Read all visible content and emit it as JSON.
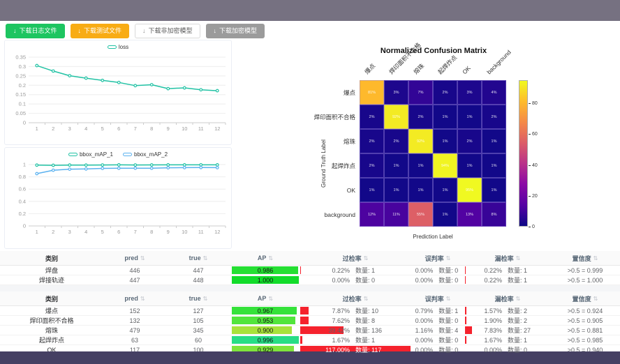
{
  "icons": {
    "download": "↓",
    "sort": "⇅"
  },
  "toolbar": {
    "buttons": [
      {
        "label": "下载日志文件",
        "style": "green"
      },
      {
        "label": "下载测试文件",
        "style": "orange"
      },
      {
        "label": "下载非加密模型",
        "style": "plain"
      },
      {
        "label": "下载加密模型",
        "style": "gray"
      }
    ]
  },
  "chart_data": [
    {
      "type": "line",
      "title": "",
      "x": [
        1,
        2,
        3,
        4,
        5,
        6,
        7,
        8,
        9,
        10,
        11,
        12
      ],
      "series": [
        {
          "name": "loss",
          "color": "#21c2a4",
          "values": [
            0.305,
            0.276,
            0.251,
            0.238,
            0.226,
            0.215,
            0.198,
            0.203,
            0.182,
            0.186,
            0.176,
            0.171
          ]
        }
      ],
      "ylim": [
        0,
        0.35
      ],
      "yticks": [
        0,
        0.05,
        0.1,
        0.15,
        0.2,
        0.25,
        0.3,
        0.35
      ],
      "grid": true,
      "legend_position": "top"
    },
    {
      "type": "line",
      "title": "",
      "x": [
        1,
        2,
        3,
        4,
        5,
        6,
        7,
        8,
        9,
        10,
        11,
        12
      ],
      "series": [
        {
          "name": "bbox_mAP_1",
          "color": "#21c2a4",
          "values": [
            0.991,
            0.988,
            0.992,
            0.991,
            0.993,
            0.995,
            0.993,
            0.994,
            0.995,
            0.995,
            0.996,
            0.995
          ]
        },
        {
          "name": "bbox_mAP_2",
          "color": "#5ab1ef",
          "values": [
            0.852,
            0.908,
            0.925,
            0.928,
            0.938,
            0.94,
            0.941,
            0.94,
            0.948,
            0.95,
            0.951,
            0.95
          ]
        }
      ],
      "ylim": [
        0,
        1
      ],
      "yticks": [
        0,
        0.2,
        0.4,
        0.6,
        0.8,
        1
      ],
      "grid": true,
      "legend_position": "top"
    },
    {
      "type": "heatmap",
      "title": "Normalized Confusion Matrix",
      "xlabel": "Prediction Label",
      "ylabel": "Ground Truth Label",
      "labels": [
        "爆点",
        "焊印面积不合格",
        "熔珠",
        "起焊炸点",
        "OK",
        "background"
      ],
      "values": [
        [
          81,
          3,
          7,
          2,
          3,
          4
        ],
        [
          2,
          92,
          2,
          1,
          1,
          2
        ],
        [
          2,
          2,
          92,
          1,
          2,
          1
        ],
        [
          2,
          1,
          1,
          94,
          1,
          1
        ],
        [
          1,
          1,
          1,
          1,
          95,
          1
        ],
        [
          12,
          11,
          55,
          1,
          13,
          8
        ]
      ],
      "unit": "%",
      "vmax": 95,
      "colorbar_ticks": [
        0,
        20,
        40,
        60,
        80
      ],
      "colormap": "plasma"
    }
  ],
  "table_columns": [
    {
      "label": "类别",
      "sortable": false
    },
    {
      "label": "pred",
      "sortable": true
    },
    {
      "label": "true",
      "sortable": true
    },
    {
      "label": "AP",
      "sortable": true
    },
    {
      "label": "过检率",
      "sortable": true
    },
    {
      "label": "误判率",
      "sortable": true
    },
    {
      "label": "漏检率",
      "sortable": true
    },
    {
      "label": "置信度",
      "sortable": true
    }
  ],
  "tables": [
    {
      "rows": [
        {
          "category": "焊盘",
          "pred": "446",
          "true": "447",
          "ap": {
            "label": "0.986",
            "pct": 98.6,
            "color": "#25df33"
          },
          "over": {
            "pct": "0.22%",
            "count": "数量: 1",
            "bar": 0.22
          },
          "mis": {
            "pct": "0.00%",
            "count": "数量: 0",
            "bar": 0
          },
          "miss": {
            "pct": "0.22%",
            "count": "数量: 1",
            "bar": 0.22
          },
          "conf": ">0.5 = 0.999"
        },
        {
          "category": "焊接轨迹",
          "pred": "447",
          "true": "448",
          "ap": {
            "label": "1.000",
            "pct": 100,
            "color": "#12dc2a"
          },
          "over": {
            "pct": "0.00%",
            "count": "数量: 0",
            "bar": 0
          },
          "mis": {
            "pct": "0.00%",
            "count": "数量: 0",
            "bar": 0
          },
          "miss": {
            "pct": "0.22%",
            "count": "数量: 1",
            "bar": 0.22
          },
          "conf": ">0.5 = 1.000"
        }
      ]
    },
    {
      "rows": [
        {
          "category": "爆点",
          "pred": "152",
          "true": "127",
          "ap": {
            "label": "0.967",
            "pct": 96.7,
            "color": "#35e23a"
          },
          "over": {
            "pct": "7.87%",
            "count": "数量: 10",
            "bar": 7.87
          },
          "mis": {
            "pct": "0.79%",
            "count": "数量: 1",
            "bar": 0
          },
          "miss": {
            "pct": "1.57%",
            "count": "数量: 2",
            "bar": 1.57
          },
          "conf": ">0.5 = 0.924"
        },
        {
          "category": "焊印面积不合格",
          "pred": "132",
          "true": "105",
          "ap": {
            "label": "0.953",
            "pct": 95.3,
            "color": "#52e53c"
          },
          "over": {
            "pct": "7.62%",
            "count": "数量: 8",
            "bar": 7.62
          },
          "mis": {
            "pct": "0.00%",
            "count": "数量: 0",
            "bar": 0
          },
          "miss": {
            "pct": "1.90%",
            "count": "数量: 2",
            "bar": 1.9
          },
          "conf": ">0.5 = 0.905"
        },
        {
          "category": "熔珠",
          "pred": "479",
          "true": "345",
          "ap": {
            "label": "0.900",
            "pct": 90,
            "color": "#a8e23b"
          },
          "over": {
            "pct": "39.42%",
            "count": "数量: 136",
            "bar": 39.42
          },
          "mis": {
            "pct": "1.16%",
            "count": "数量: 4",
            "bar": 0
          },
          "miss": {
            "pct": "7.83%",
            "count": "数量: 27",
            "bar": 7.83
          },
          "conf": ">0.5 = 0.881"
        },
        {
          "category": "起焊炸点",
          "pred": "63",
          "true": "60",
          "ap": {
            "label": "0.996",
            "pct": 99.6,
            "color": "#27dd86"
          },
          "over": {
            "pct": "1.67%",
            "count": "数量: 1",
            "bar": 1.67
          },
          "mis": {
            "pct": "0.00%",
            "count": "数量: 0",
            "bar": 0
          },
          "miss": {
            "pct": "1.67%",
            "count": "数量: 1",
            "bar": 1.67
          },
          "conf": ">0.5 = 0.985"
        },
        {
          "category": "OK",
          "pred": "117",
          "true": "100",
          "ap": {
            "label": "0.929",
            "pct": 92.9,
            "color": "#7fe43c"
          },
          "over": {
            "pct": "117.00%",
            "count": "数量: 117",
            "bar": 117
          },
          "mis": {
            "pct": "0.00%",
            "count": "数量: 0",
            "bar": 0
          },
          "miss": {
            "pct": "0.00%",
            "count": "数量: 0",
            "bar": 0
          },
          "conf": ">0.5 = 0.940"
        }
      ]
    }
  ]
}
